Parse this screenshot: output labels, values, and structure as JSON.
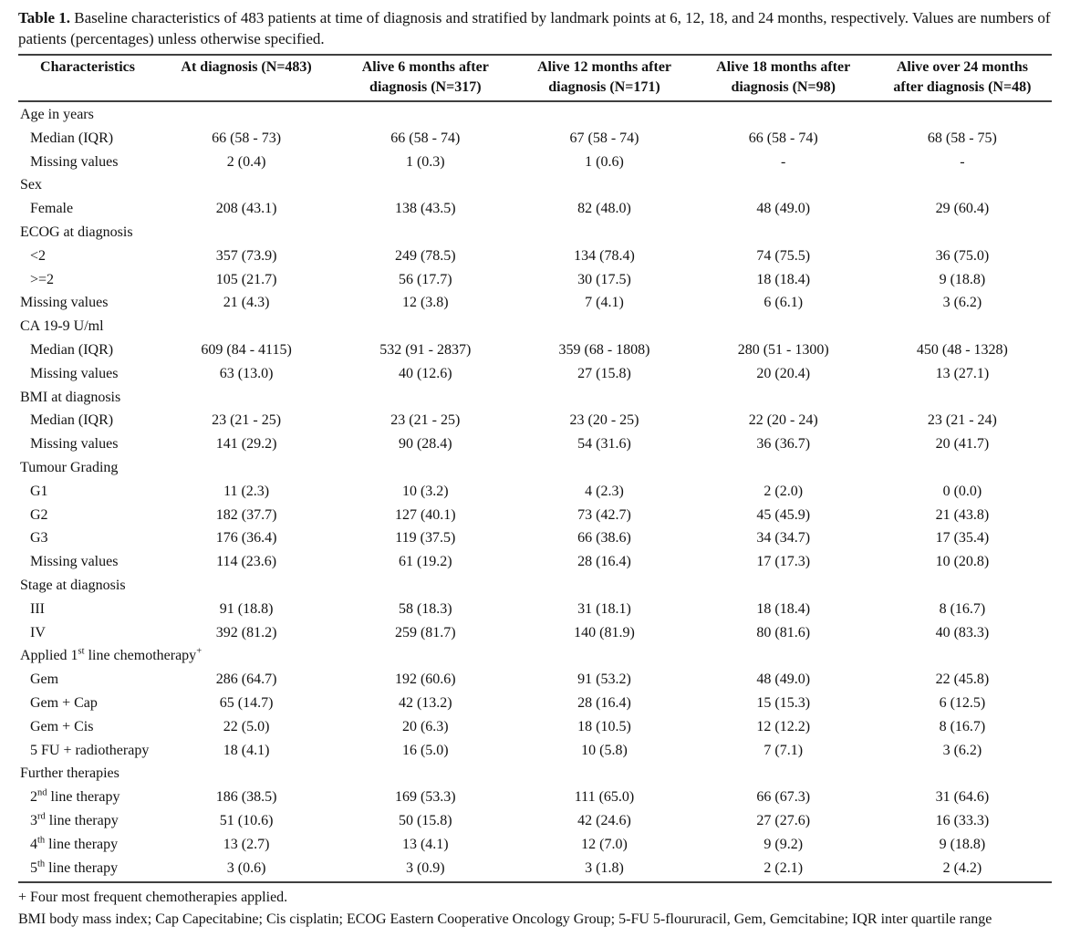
{
  "caption": {
    "label": "Table 1.",
    "text": " Baseline characteristics of 483 patients at time of diagnosis and stratified by landmark points at 6, 12, 18, and 24 months, respectively. Values are numbers of patients (percentages) unless otherwise specified."
  },
  "table": {
    "columns": [
      "Characteristics",
      "At diagnosis (N=483)",
      "Alive 6 months after diagnosis (N=317)",
      "Alive 12 months after diagnosis (N=171)",
      "Alive 18 months after diagnosis (N=98)",
      "Alive over 24 months after diagnosis (N=48)"
    ],
    "rows": [
      {
        "label": "Age in years",
        "section": true,
        "indent": false,
        "values": [
          "",
          "",
          "",
          "",
          ""
        ]
      },
      {
        "label": "Median (IQR)",
        "section": false,
        "indent": true,
        "values": [
          "66 (58 - 73)",
          "66 (58 - 74)",
          "67 (58 - 74)",
          "66 (58 - 74)",
          "68 (58 - 75)"
        ]
      },
      {
        "label": "Missing values",
        "section": false,
        "indent": true,
        "values": [
          "2 (0.4)",
          "1 (0.3)",
          "1 (0.6)",
          "-",
          "-"
        ]
      },
      {
        "label": "Sex",
        "section": true,
        "indent": false,
        "values": [
          "",
          "",
          "",
          "",
          ""
        ]
      },
      {
        "label": "Female",
        "section": false,
        "indent": true,
        "values": [
          "208 (43.1)",
          "138 (43.5)",
          "82 (48.0)",
          "48 (49.0)",
          "29 (60.4)"
        ]
      },
      {
        "label": "ECOG at diagnosis",
        "section": true,
        "indent": false,
        "values": [
          "",
          "",
          "",
          "",
          ""
        ]
      },
      {
        "label": "<2",
        "section": false,
        "indent": true,
        "values": [
          "357 (73.9)",
          "249 (78.5)",
          "134 (78.4)",
          "74 (75.5)",
          "36 (75.0)"
        ]
      },
      {
        "label": ">=2",
        "section": false,
        "indent": true,
        "values": [
          "105 (21.7)",
          "56 (17.7)",
          "30 (17.5)",
          "18 (18.4)",
          "9 (18.8)"
        ]
      },
      {
        "label": "Missing values",
        "section": false,
        "indent": false,
        "values": [
          "21 (4.3)",
          "12 (3.8)",
          "7 (4.1)",
          "6 (6.1)",
          "3 (6.2)"
        ]
      },
      {
        "label": "CA 19-9 U/ml",
        "section": true,
        "indent": false,
        "values": [
          "",
          "",
          "",
          "",
          ""
        ]
      },
      {
        "label": "Median (IQR)",
        "section": false,
        "indent": true,
        "values": [
          "609 (84 - 4115)",
          "532 (91 - 2837)",
          "359 (68 - 1808)",
          "280 (51 - 1300)",
          "450 (48 - 1328)"
        ]
      },
      {
        "label": "Missing values",
        "section": false,
        "indent": true,
        "values": [
          "63 (13.0)",
          "40 (12.6)",
          "27 (15.8)",
          "20 (20.4)",
          "13 (27.1)"
        ]
      },
      {
        "label": "BMI at diagnosis",
        "section": true,
        "indent": false,
        "values": [
          "",
          "",
          "",
          "",
          ""
        ]
      },
      {
        "label": "Median (IQR)",
        "section": false,
        "indent": true,
        "values": [
          "23 (21 - 25)",
          "23 (21 - 25)",
          "23 (20 - 25)",
          "22 (20 - 24)",
          "23 (21 - 24)"
        ]
      },
      {
        "label": "Missing values",
        "section": false,
        "indent": true,
        "values": [
          "141 (29.2)",
          "90 (28.4)",
          "54 (31.6)",
          "36 (36.7)",
          "20 (41.7)"
        ]
      },
      {
        "label": "Tumour Grading",
        "section": true,
        "indent": false,
        "values": [
          "",
          "",
          "",
          "",
          ""
        ]
      },
      {
        "label": "G1",
        "section": false,
        "indent": true,
        "values": [
          "11 (2.3)",
          "10 (3.2)",
          "4 (2.3)",
          "2 (2.0)",
          "0 (0.0)"
        ]
      },
      {
        "label": "G2",
        "section": false,
        "indent": true,
        "values": [
          "182 (37.7)",
          "127 (40.1)",
          "73 (42.7)",
          "45 (45.9)",
          "21 (43.8)"
        ]
      },
      {
        "label": "G3",
        "section": false,
        "indent": true,
        "values": [
          "176 (36.4)",
          "119 (37.5)",
          "66 (38.6)",
          "34 (34.7)",
          "17 (35.4)"
        ]
      },
      {
        "label": "Missing values",
        "section": false,
        "indent": true,
        "values": [
          "114 (23.6)",
          "61 (19.2)",
          "28 (16.4)",
          "17 (17.3)",
          "10 (20.8)"
        ]
      },
      {
        "label": "Stage at diagnosis",
        "section": true,
        "indent": false,
        "values": [
          "",
          "",
          "",
          "",
          ""
        ]
      },
      {
        "label": "III",
        "section": false,
        "indent": true,
        "values": [
          "91 (18.8)",
          "58 (18.3)",
          "31 (18.1)",
          "18 (18.4)",
          "8 (16.7)"
        ]
      },
      {
        "label": "IV",
        "section": false,
        "indent": true,
        "values": [
          "392 (81.2)",
          "259 (81.7)",
          "140 (81.9)",
          "80 (81.6)",
          "40 (83.3)"
        ]
      },
      {
        "label": "Applied 1^st^ line chemotherapy^+^",
        "section": true,
        "indent": false,
        "values": [
          "",
          "",
          "",
          "",
          ""
        ]
      },
      {
        "label": "Gem",
        "section": false,
        "indent": true,
        "values": [
          "286 (64.7)",
          "192 (60.6)",
          "91 (53.2)",
          "48 (49.0)",
          "22 (45.8)"
        ]
      },
      {
        "label": "Gem + Cap",
        "section": false,
        "indent": true,
        "values": [
          "65 (14.7)",
          "42 (13.2)",
          "28 (16.4)",
          "15 (15.3)",
          "6 (12.5)"
        ]
      },
      {
        "label": "Gem + Cis",
        "section": false,
        "indent": true,
        "values": [
          "22 (5.0)",
          "20 (6.3)",
          "18 (10.5)",
          "12 (12.2)",
          "8 (16.7)"
        ]
      },
      {
        "label": "5 FU + radiotherapy",
        "section": false,
        "indent": true,
        "values": [
          "18 (4.1)",
          "16 (5.0)",
          "10 (5.8)",
          "7 (7.1)",
          "3 (6.2)"
        ]
      },
      {
        "label": "Further therapies",
        "section": true,
        "indent": false,
        "values": [
          "",
          "",
          "",
          "",
          ""
        ]
      },
      {
        "label": "2^nd^ line therapy",
        "section": false,
        "indent": true,
        "values": [
          "186 (38.5)",
          "169 (53.3)",
          "111 (65.0)",
          "66 (67.3)",
          "31 (64.6)"
        ]
      },
      {
        "label": "3^rd^ line therapy",
        "section": false,
        "indent": true,
        "values": [
          "51 (10.6)",
          "50 (15.8)",
          "42 (24.6)",
          "27 (27.6)",
          "16 (33.3)"
        ]
      },
      {
        "label": "4^th^ line therapy",
        "section": false,
        "indent": true,
        "values": [
          "13 (2.7)",
          "13 (4.1)",
          "12 (7.0)",
          "9 (9.2)",
          "9 (18.8)"
        ]
      },
      {
        "label": "5^th^ line therapy",
        "section": false,
        "indent": true,
        "values": [
          "3 (0.6)",
          "3 (0.9)",
          "3 (1.8)",
          "2 (2.1)",
          "2 (4.2)"
        ]
      }
    ]
  },
  "footnotes": [
    "+ Four most frequent chemotherapies applied.",
    "BMI body mass index; Cap Capecitabine; Cis cisplatin; ECOG Eastern Cooperative Oncology Group; 5-FU 5-floururacil, Gem, Gemcitabine; IQR inter quartile range"
  ]
}
